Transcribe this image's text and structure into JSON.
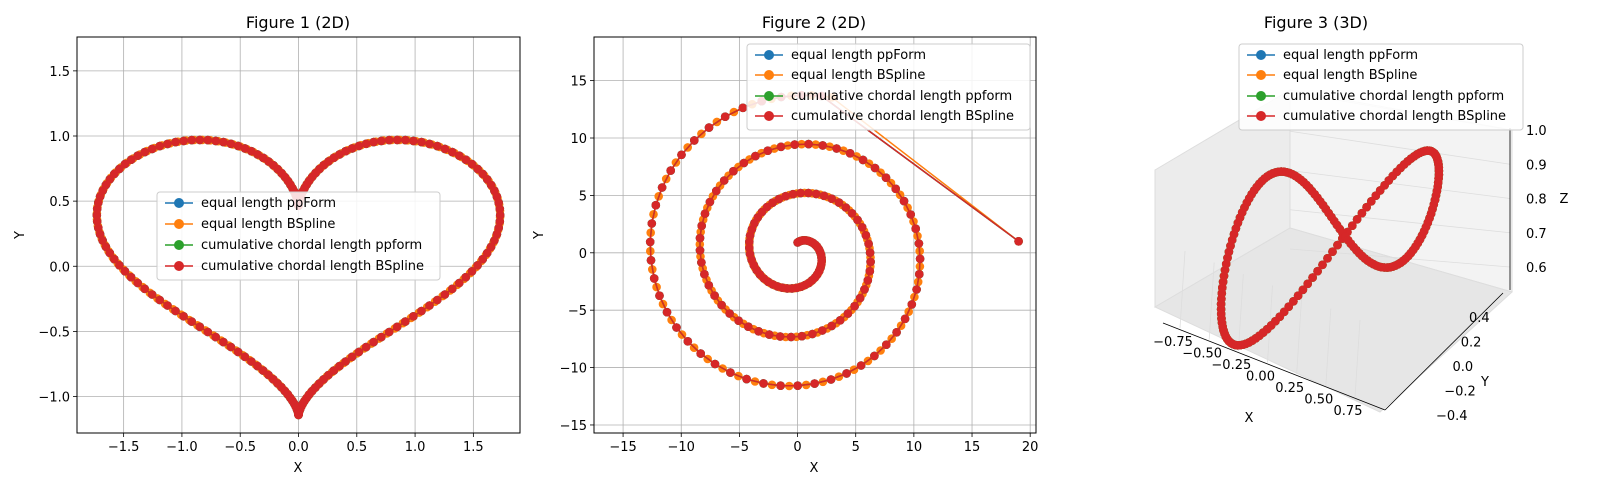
{
  "colors": {
    "series": [
      "#1f77b4",
      "#ff7f0e",
      "#2ca02c",
      "#d62728"
    ],
    "grid": "#b0b0b0",
    "axis": "#000000"
  },
  "series_names": [
    "equal length ppForm",
    "equal length BSpline",
    "cumulative chordal length ppform",
    "cumulative chordal length BSpline"
  ],
  "chart_data": [
    {
      "type": "line",
      "title": "Figure 1 (2D)",
      "xlabel": "X",
      "ylabel": "Y",
      "xlim": [
        -1.9,
        1.9
      ],
      "ylim": [
        -1.28,
        1.76
      ],
      "xticks": [
        -1.5,
        -1.0,
        -0.5,
        0.0,
        0.5,
        1.0,
        1.5
      ],
      "xtick_labels": [
        "−1.5",
        "−1.0",
        "−0.5",
        "0.0",
        "0.5",
        "1.0",
        "1.5"
      ],
      "yticks": [
        -1.0,
        -0.5,
        0.0,
        0.5,
        1.0,
        1.5
      ],
      "ytick_labels": [
        "−1.0",
        "−0.5",
        "0.0",
        "0.5",
        "1.0",
        "1.5"
      ],
      "grid": true,
      "legend_position": "center",
      "curve": "heart",
      "curve_params": {
        "t_start": 0,
        "t_end": 6.2832,
        "points": 180
      },
      "series": [
        {
          "name": "equal length ppForm"
        },
        {
          "name": "equal length BSpline"
        },
        {
          "name": "cumulative chordal length ppform"
        },
        {
          "name": "cumulative chordal length BSpline"
        }
      ]
    },
    {
      "type": "line",
      "title": "Figure 2 (2D)",
      "xlabel": "X",
      "ylabel": "Y",
      "xlim": [
        -17.5,
        20.5
      ],
      "ylim": [
        -15.7,
        18.8
      ],
      "xticks": [
        -15,
        -10,
        -5,
        0,
        5,
        10,
        15,
        20
      ],
      "xtick_labels": [
        "−15",
        "−10",
        "−5",
        "0",
        "5",
        "10",
        "15",
        "20"
      ],
      "yticks": [
        -15,
        -10,
        -5,
        0,
        5,
        10,
        15
      ],
      "ytick_labels": [
        "−15",
        "−10",
        "−5",
        "0",
        "5",
        "10",
        "15"
      ],
      "grid": true,
      "legend_position": "top-right",
      "curve": "spiral",
      "curve_params": {
        "t_start": 0,
        "t_end": 19.0,
        "points": 150,
        "end_point": [
          19,
          1
        ]
      },
      "series": [
        {
          "name": "equal length ppForm"
        },
        {
          "name": "equal length BSpline"
        },
        {
          "name": "cumulative chordal length ppform"
        },
        {
          "name": "cumulative chordal length BSpline"
        }
      ]
    },
    {
      "type": "line",
      "title": "Figure 3 (3D)",
      "xlabel": "X",
      "ylabel": "Y",
      "zlabel": "Z",
      "xticks": [
        -0.75,
        -0.5,
        -0.25,
        0.0,
        0.25,
        0.5,
        0.75
      ],
      "xtick_labels": [
        "−0.75",
        "−0.50",
        "−0.25",
        "0.00",
        "0.25",
        "0.50",
        "0.75"
      ],
      "yticks": [
        0.4,
        0.2,
        0.0,
        -0.2,
        -0.4
      ],
      "ytick_labels": [
        "0.4",
        "0.2",
        "0.0",
        "−0.2",
        "−0.4"
      ],
      "zticks": [
        1.0,
        0.9,
        0.8,
        0.7,
        0.6
      ],
      "ztick_labels": [
        "1.0",
        "0.9",
        "0.8",
        "0.7",
        "0.6"
      ],
      "grid": true,
      "legend_position": "top-center",
      "curve": "3d-loop",
      "series": [
        {
          "name": "equal length ppForm"
        },
        {
          "name": "equal length BSpline"
        },
        {
          "name": "cumulative chordal length ppform"
        },
        {
          "name": "cumulative chordal length BSpline"
        }
      ]
    }
  ]
}
